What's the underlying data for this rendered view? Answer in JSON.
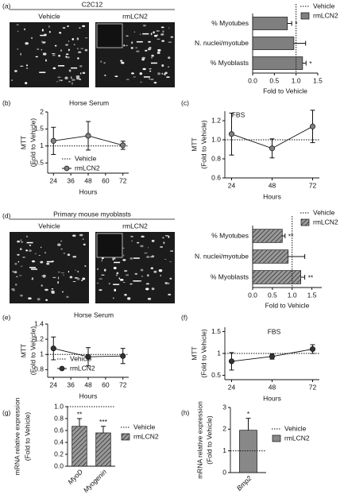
{
  "images": [
    {
      "panel": "(a)",
      "title": "C2C12",
      "labels": [
        "Vehicle",
        "rmLCN2"
      ]
    },
    {
      "panel": "(d)",
      "title": "Primary mouse myoblasts",
      "labels": [
        "Vehicle",
        "rmLCN2"
      ]
    }
  ],
  "chart_data": [
    {
      "type": "hbar",
      "categories": [
        "% Myotubes",
        "N. nuclei/myotube",
        "% Myoblasts"
      ],
      "series": [
        {
          "name": "rmLCN2",
          "color": "#7f7f7f",
          "values": [
            0.8,
            0.95,
            1.15
          ],
          "errors": [
            0.1,
            0.27,
            0.08
          ]
        }
      ],
      "reference": {
        "name": "Vehicle",
        "value": 1
      },
      "significance": [
        "*",
        null,
        "*"
      ],
      "x_label": "Fold to Vehicle",
      "xlim": [
        0,
        1.5
      ],
      "xticks": [
        {
          "value": 0,
          "label": "0.0"
        },
        0.5,
        {
          "value": 1,
          "label": "1.0"
        },
        1.5
      ],
      "legend": "top right"
    },
    {
      "type": "line",
      "panel": "(b)",
      "title": "Horse Serum",
      "x": [
        24,
        48,
        72
      ],
      "series": [
        {
          "name": "rmLCN2",
          "color": "#7f7f7f",
          "values": [
            1.15,
            1.3,
            1.02
          ],
          "errors": [
            0.4,
            0.42,
            0.12
          ]
        }
      ],
      "reference": {
        "name": "Vehicle",
        "value": 1
      },
      "x_label": "Hours",
      "y_label": [
        "MTT",
        "(Fold to Vehicle)"
      ],
      "xlim": [
        20,
        76
      ],
      "xticks": [
        24,
        36,
        48,
        60,
        72
      ],
      "ylim": [
        0.2,
        2
      ],
      "yticks": [
        0.5,
        1,
        1.5,
        2
      ],
      "legend": "lower right"
    },
    {
      "type": "line",
      "panel": "(c)",
      "title": "FBS",
      "x": [
        24,
        48,
        72
      ],
      "series": [
        {
          "name": "rmLCN2",
          "color": "#7f7f7f",
          "values": [
            1.06,
            0.91,
            1.14
          ],
          "errors": [
            0.22,
            0.1,
            0.17
          ]
        }
      ],
      "reference": {
        "name": "Vehicle",
        "value": 1
      },
      "x_label": "Hours",
      "y_label": [
        "MTT",
        "(Fold to Vehicle)"
      ],
      "xlim": [
        20,
        76
      ],
      "xticks": [
        24,
        48,
        72
      ],
      "ylim": [
        0.6,
        1.3
      ],
      "yticks": [
        0.6,
        0.8,
        {
          "value": 1,
          "label": "1.0"
        },
        1.2
      ]
    },
    {
      "type": "hbar",
      "categories": [
        "% Myotubes",
        "N. nuclei/myotube",
        "% Myoblasts"
      ],
      "series": [
        {
          "name": "rmLCN2",
          "color": "#555555",
          "values": [
            0.75,
            0.9,
            1.22
          ],
          "errors": [
            0.07,
            0.42,
            0.1
          ]
        }
      ],
      "reference": {
        "name": "Vehicle",
        "value": 1
      },
      "significance": [
        "**",
        null,
        "**"
      ],
      "x_label": "Fold to Vehicle",
      "xlim": [
        0,
        1.75
      ],
      "xticks": [
        {
          "value": 0,
          "label": "0.0"
        },
        0.5,
        {
          "value": 1,
          "label": "1.0"
        },
        1.5
      ],
      "hatch": true,
      "legend": "top right"
    },
    {
      "type": "line",
      "panel": "(e)",
      "title": "Horse Serum",
      "x": [
        24,
        48,
        72
      ],
      "series": [
        {
          "name": "rmLCN2",
          "color": "#333333",
          "values": [
            1.08,
            0.97,
            0.98
          ],
          "errors": [
            0.15,
            0.12,
            0.1
          ]
        }
      ],
      "reference": {
        "name": "Vehicle",
        "value": 1
      },
      "x_label": "Hours",
      "y_label": [
        "MTT",
        "(Fold to Vehicle)"
      ],
      "xlim": [
        20,
        76
      ],
      "xticks": [
        24,
        36,
        48,
        60,
        72
      ],
      "ylim": [
        0.7,
        1.4
      ],
      "yticks": [
        0.8,
        1,
        1.2,
        1.4
      ],
      "legend": "lower left"
    },
    {
      "type": "line",
      "panel": "(f)",
      "title": "FBS",
      "x": [
        24,
        48,
        72
      ],
      "series": [
        {
          "name": "rmLCN2",
          "color": "#333333",
          "values": [
            0.82,
            0.93,
            1.1
          ],
          "errors": [
            0.2,
            0.06,
            0.1
          ]
        }
      ],
      "reference": {
        "name": "Vehicle",
        "value": 1
      },
      "x_label": "Hours",
      "y_label": [
        "MTT",
        "(Fold to Vehicle)"
      ],
      "xlim": [
        20,
        76
      ],
      "xticks": [
        24,
        48,
        72
      ],
      "ylim": [
        0.4,
        1.6
      ],
      "yticks": [
        0.5,
        1,
        1.5
      ]
    },
    {
      "type": "bar",
      "panel": "(g)",
      "categories": [
        "MyoD",
        "Myogenin"
      ],
      "series": [
        {
          "name": "rmLCN2",
          "color": "#555555",
          "values": [
            0.67,
            0.56
          ],
          "errors": [
            0.13,
            0.11
          ]
        }
      ],
      "reference": {
        "name": "Vehicle",
        "value": 1
      },
      "significance": [
        "**",
        "***"
      ],
      "y_label": [
        "mRNA relative expression",
        "(Fold to Vehicle)"
      ],
      "ylim": [
        0,
        1
      ],
      "yticks": [
        {
          "value": 0,
          "label": "0.0"
        },
        0.2,
        0.4,
        0.6,
        0.8,
        {
          "value": 1,
          "label": "1.0"
        }
      ],
      "hatch": true,
      "legend": "right"
    },
    {
      "type": "bar",
      "panel": "(h)",
      "categories": [
        "Bmp2"
      ],
      "series": [
        {
          "name": "rmLCN2",
          "color": "#888888",
          "values": [
            1.95
          ],
          "errors": [
            0.55
          ]
        }
      ],
      "reference": {
        "name": "Vehicle",
        "value": 1
      },
      "significance": [
        "*"
      ],
      "y_label": [
        "mRNA relative expression",
        "(Fold to Vehicle)"
      ],
      "ylim": [
        0,
        3
      ],
      "yticks": [
        0,
        1,
        2,
        3
      ],
      "legend": "right"
    }
  ]
}
